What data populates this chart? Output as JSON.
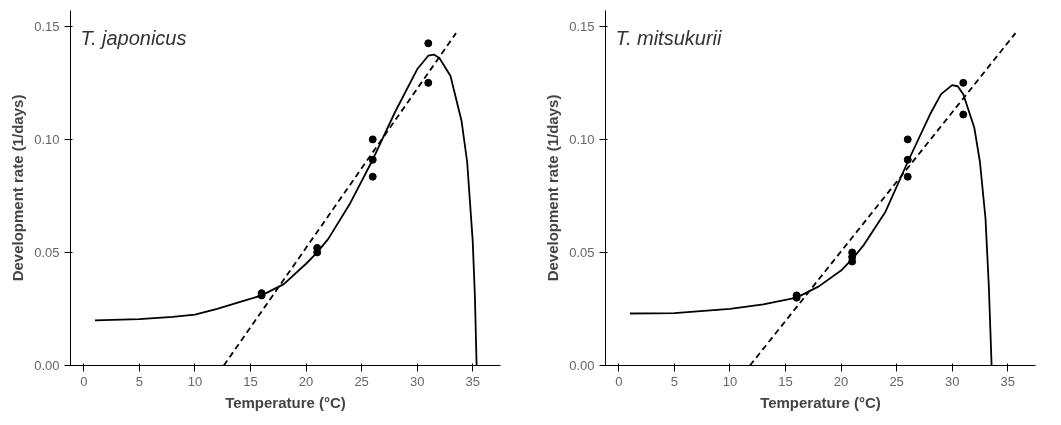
{
  "chart_data": [
    {
      "type": "scatter",
      "xlabel": "Temperature (°C)",
      "ylabel": "Development rate (1/days)",
      "annotations": [
        "T. japonicus"
      ],
      "xlim": [
        -1.2,
        37.5
      ],
      "ylim": [
        0,
        0.157
      ],
      "xticks": [
        0,
        5,
        10,
        15,
        20,
        25,
        30,
        35
      ],
      "yticks": [
        {
          "value": 0,
          "label": "0.00"
        },
        {
          "value": 0.05,
          "label": "0.05"
        },
        {
          "value": 0.1,
          "label": "0.10"
        },
        {
          "value": 0.15,
          "label": "0.15"
        }
      ],
      "grid": false,
      "series": [
        {
          "marker": "circle",
          "color": "#000000",
          "x": [
            16,
            16,
            21,
            21,
            26,
            26,
            26,
            31,
            31
          ],
          "values": [
            0.032,
            0.031,
            0.052,
            0.05,
            0.1,
            0.091,
            0.0835,
            0.1425,
            0.125
          ]
        },
        {
          "type": "line",
          "line_style": "solid",
          "color": "#000000",
          "x": [
            1,
            5,
            8,
            10,
            12,
            14,
            16,
            18,
            20,
            21,
            22,
            24,
            26,
            28,
            30,
            31,
            31.5,
            32,
            33,
            34,
            34.5,
            35,
            35.2,
            35.35
          ],
          "values": [
            0.02,
            0.0205,
            0.0215,
            0.0225,
            0.025,
            0.028,
            0.031,
            0.036,
            0.045,
            0.05,
            0.056,
            0.072,
            0.091,
            0.112,
            0.131,
            0.137,
            0.1375,
            0.136,
            0.128,
            0.108,
            0.09,
            0.055,
            0.03,
            0
          ]
        },
        {
          "type": "line",
          "line_style": "dashed",
          "color": "#000000",
          "x": [
            12.6,
            33.5
          ],
          "values": [
            0,
            0.147
          ]
        }
      ]
    },
    {
      "type": "scatter",
      "xlabel": "Temperature (°C)",
      "ylabel": "Development rate (1/days)",
      "annotations": [
        "T. mitsukurii"
      ],
      "xlim": [
        -1.2,
        37.5
      ],
      "ylim": [
        0,
        0.157
      ],
      "xticks": [
        0,
        5,
        10,
        15,
        20,
        25,
        30,
        35
      ],
      "yticks": [
        {
          "value": 0,
          "label": "0.00"
        },
        {
          "value": 0.05,
          "label": "0.05"
        },
        {
          "value": 0.1,
          "label": "0.10"
        },
        {
          "value": 0.15,
          "label": "0.15"
        }
      ],
      "grid": false,
      "series": [
        {
          "marker": "circle",
          "color": "#000000",
          "x": [
            16,
            16,
            21,
            21,
            21,
            26,
            26,
            26,
            31,
            31
          ],
          "values": [
            0.031,
            0.03,
            0.05,
            0.048,
            0.046,
            0.1,
            0.091,
            0.0835,
            0.125,
            0.111
          ]
        },
        {
          "type": "line",
          "line_style": "solid",
          "color": "#000000",
          "x": [
            1,
            5,
            10,
            13,
            16,
            18,
            20,
            21,
            22,
            24,
            26,
            28,
            29,
            30,
            30.5,
            31,
            32,
            32.5,
            33,
            33.3,
            33.55
          ],
          "values": [
            0.023,
            0.0232,
            0.025,
            0.027,
            0.03,
            0.035,
            0.042,
            0.047,
            0.053,
            0.068,
            0.09,
            0.111,
            0.12,
            0.124,
            0.1235,
            0.12,
            0.105,
            0.09,
            0.065,
            0.035,
            0
          ]
        },
        {
          "type": "line",
          "line_style": "dashed",
          "color": "#000000",
          "x": [
            11.8,
            35.7
          ],
          "values": [
            0,
            0.147
          ]
        }
      ]
    }
  ]
}
